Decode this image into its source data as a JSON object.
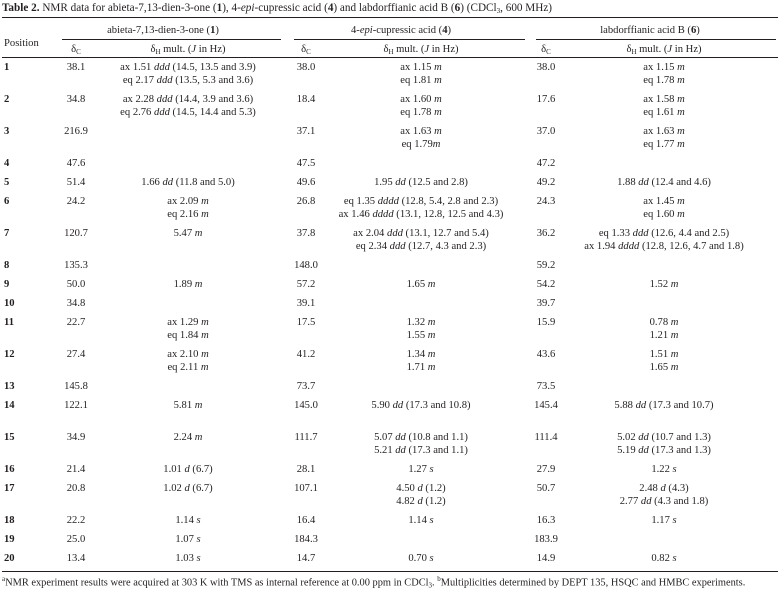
{
  "table": {
    "label": "Table 2.",
    "caption_parts": [
      "NMR data for abieta-7,13-dien-3-one (",
      "1",
      "), 4-",
      "epi",
      "-cupressic acid (",
      "4",
      ") and labdorffianic acid B (",
      "6",
      ") (CDCl",
      "3",
      ", 600 MHz)"
    ],
    "position_header": "Position",
    "compounds": [
      {
        "name_parts": [
          "abieta-7,13-dien-3-one (",
          "1",
          ")"
        ]
      },
      {
        "name_parts": [
          "4-",
          "epi",
          "-cupressic acid (",
          "4",
          ")"
        ]
      },
      {
        "name_parts": [
          "labdorffianic acid B (",
          "6",
          ")"
        ]
      }
    ],
    "subheaders": {
      "dc_sym": "δ",
      "dc_sub": "C",
      "dh_sym": "δ",
      "dh_sub": "H",
      "dh_rest": " mult. (",
      "dh_j": "J",
      "dh_end": " in Hz)"
    },
    "rows": [
      {
        "pos": "1",
        "c1": "38.1",
        "h1": [
          [
            "ax 1.51 ",
            "ddd",
            " (14.5, 13.5 and 3.9)"
          ],
          [
            "eq 2.17 ",
            "ddd",
            " (13.5, 5.3 and 3.6)"
          ]
        ],
        "c4": "38.0",
        "h4": [
          [
            "ax 1.15 ",
            "m",
            ""
          ],
          [
            "eq 1.81 ",
            "m",
            ""
          ]
        ],
        "c6": "38.0",
        "h6": [
          [
            "ax 1.15 ",
            "m",
            ""
          ],
          [
            "eq 1.78 ",
            "m",
            ""
          ]
        ]
      },
      {
        "pos": "2",
        "c1": "34.8",
        "h1": [
          [
            "ax 2.28 ",
            "ddd",
            " (14.4, 3.9 and 3.6)"
          ],
          [
            "eq 2.76 ",
            "ddd",
            " (14.5, 14.4 and 5.3)"
          ]
        ],
        "c4": "18.4",
        "h4": [
          [
            "ax 1.60 ",
            "m",
            ""
          ],
          [
            "eq 1.78 ",
            "m",
            ""
          ]
        ],
        "c6": "17.6",
        "h6": [
          [
            "ax 1.58 ",
            "m",
            ""
          ],
          [
            "eq 1.61 ",
            "m",
            ""
          ]
        ]
      },
      {
        "pos": "3",
        "c1": "216.9",
        "h1": [],
        "c4": "37.1",
        "h4": [
          [
            "ax 1.63 ",
            "m",
            ""
          ],
          [
            "eq 1.79",
            "m",
            ""
          ]
        ],
        "c6": "37.0",
        "h6": [
          [
            "ax 1.63 ",
            "m",
            ""
          ],
          [
            "eq 1.77 ",
            "m",
            ""
          ]
        ]
      },
      {
        "pos": "4",
        "c1": "47.6",
        "h1": [],
        "c4": "47.5",
        "h4": [],
        "c6": "47.2",
        "h6": []
      },
      {
        "pos": "5",
        "c1": "51.4",
        "h1": [
          [
            "1.66 ",
            "dd",
            " (11.8 and 5.0)"
          ]
        ],
        "c4": "49.6",
        "h4": [
          [
            "1.95 ",
            "dd",
            " (12.5 and 2.8)"
          ]
        ],
        "c6": "49.2",
        "h6": [
          [
            "1.88 ",
            "dd",
            " (12.4 and 4.6)"
          ]
        ]
      },
      {
        "pos": "6",
        "c1": "24.2",
        "h1": [
          [
            "ax 2.09 ",
            "m",
            ""
          ],
          [
            "eq 2.16 ",
            "m",
            ""
          ]
        ],
        "c4": "26.8",
        "h4": [
          [
            "eq 1.35 ",
            "dddd",
            " (12.8, 5.4, 2.8 and 2.3)"
          ],
          [
            "ax 1.46 ",
            "dddd",
            " (13.1, 12.8, 12.5 and 4.3)"
          ]
        ],
        "c6": "24.3",
        "h6": [
          [
            "ax 1.45 ",
            "m",
            ""
          ],
          [
            "eq 1.60 ",
            "m",
            ""
          ]
        ]
      },
      {
        "pos": "7",
        "c1": "120.7",
        "h1": [
          [
            "5.47 ",
            "m",
            ""
          ]
        ],
        "c4": "37.8",
        "h4": [
          [
            "ax 2.04 ",
            "ddd",
            " (13.1, 12.7 and 5.4)"
          ],
          [
            "eq 2.34 ",
            "ddd",
            " (12.7, 4.3 and 2.3)"
          ]
        ],
        "c6": "36.2",
        "h6": [
          [
            "eq 1.33 ",
            "ddd",
            " (12.6, 4.4 and 2.5)"
          ],
          [
            "ax 1.94 ",
            "dddd",
            " (12.8, 12.6, 4.7 and 1.8)"
          ]
        ]
      },
      {
        "pos": "8",
        "c1": "135.3",
        "h1": [],
        "c4": "148.0",
        "h4": [],
        "c6": "59.2",
        "h6": []
      },
      {
        "pos": "9",
        "c1": "50.0",
        "h1": [
          [
            "1.89 ",
            "m",
            ""
          ]
        ],
        "c4": "57.2",
        "h4": [
          [
            "1.65 ",
            "m",
            ""
          ]
        ],
        "c6": "54.2",
        "h6": [
          [
            "1.52 ",
            "m",
            ""
          ]
        ]
      },
      {
        "pos": "10",
        "c1": "34.8",
        "h1": [],
        "c4": "39.1",
        "h4": [],
        "c6": "39.7",
        "h6": []
      },
      {
        "pos": "11",
        "c1": "22.7",
        "h1": [
          [
            "ax 1.29 ",
            "m",
            ""
          ],
          [
            "eq 1.84 ",
            "m",
            ""
          ]
        ],
        "c4": "17.5",
        "h4": [
          [
            "1.32 ",
            "m",
            ""
          ],
          [
            "1.55 ",
            "m",
            ""
          ]
        ],
        "c6": "15.9",
        "h6": [
          [
            "0.78 ",
            "m",
            ""
          ],
          [
            "1.21 ",
            "m",
            ""
          ]
        ]
      },
      {
        "pos": "12",
        "c1": "27.4",
        "h1": [
          [
            "ax 2.10 ",
            "m",
            ""
          ],
          [
            "eq 2.11 ",
            "m",
            ""
          ]
        ],
        "c4": "41.2",
        "h4": [
          [
            "1.34 ",
            "m",
            ""
          ],
          [
            "1.71 ",
            "m",
            ""
          ]
        ],
        "c6": "43.6",
        "h6": [
          [
            "1.51 ",
            "m",
            ""
          ],
          [
            "1.65 ",
            "m",
            ""
          ]
        ]
      },
      {
        "pos": "13",
        "c1": "145.8",
        "h1": [],
        "c4": "73.7",
        "h4": [],
        "c6": "73.5",
        "h6": []
      },
      {
        "pos": "14",
        "c1": "122.1",
        "h1": [
          [
            "5.81 ",
            "m",
            ""
          ]
        ],
        "c4": "145.0",
        "h4": [
          [
            "5.90 ",
            "dd",
            " (17.3 and 10.8)"
          ]
        ],
        "c6": "145.4",
        "h6": [
          [
            "5.88 ",
            "dd",
            " (17.3 and 10.7)"
          ]
        ]
      },
      {
        "pos": "15",
        "c1": "34.9",
        "h1": [
          [
            "2.24 ",
            "m",
            ""
          ]
        ],
        "c4": "111.7",
        "h4": [
          [
            "5.07 ",
            "dd",
            " (10.8 and 1.1)"
          ],
          [
            "5.21 ",
            "dd",
            " (17.3 and 1.1)"
          ]
        ],
        "c6": "111.4",
        "h6": [
          [
            "5.02 ",
            "dd",
            " (10.7 and 1.3)"
          ],
          [
            "5.19 ",
            "dd",
            " (17.3 and 1.3)"
          ]
        ]
      },
      {
        "pos": "16",
        "c1": "21.4",
        "h1": [
          [
            "1.01 ",
            "d",
            " (6.7)"
          ]
        ],
        "c4": "28.1",
        "h4": [
          [
            "1.27 ",
            "s",
            ""
          ]
        ],
        "c6": "27.9",
        "h6": [
          [
            "1.22 ",
            "s",
            ""
          ]
        ]
      },
      {
        "pos": "17",
        "c1": "20.8",
        "h1": [
          [
            "1.02 ",
            "d",
            " (6.7)"
          ]
        ],
        "c4": "107.1",
        "h4": [
          [
            "4.50 ",
            "d",
            " (1.2)"
          ],
          [
            "4.82 ",
            "d",
            " (1.2)"
          ]
        ],
        "c6": "50.7",
        "h6": [
          [
            "2.48 ",
            "d",
            " (4.3)"
          ],
          [
            "2.77 ",
            "dd",
            " (4.3 and 1.8)"
          ]
        ]
      },
      {
        "pos": "18",
        "c1": "22.2",
        "h1": [
          [
            "1.14 ",
            "s",
            ""
          ]
        ],
        "c4": "16.4",
        "h4": [
          [
            "1.14 ",
            "s",
            ""
          ]
        ],
        "c6": "16.3",
        "h6": [
          [
            "1.17 ",
            "s",
            ""
          ]
        ]
      },
      {
        "pos": "19",
        "c1": "25.0",
        "h1": [
          [
            "1.07 ",
            "s",
            ""
          ]
        ],
        "c4": "184.3",
        "h4": [],
        "c6": "183.9",
        "h6": []
      },
      {
        "pos": "20",
        "c1": "13.4",
        "h1": [
          [
            "1.03 ",
            "s",
            ""
          ]
        ],
        "c4": "14.7",
        "h4": [
          [
            "0.70 ",
            "s",
            ""
          ]
        ],
        "c6": "14.9",
        "h6": [
          [
            "0.82 ",
            "s",
            ""
          ]
        ]
      }
    ],
    "footnote": {
      "a_mark": "a",
      "a_text": "NMR experiment results were acquired at 303 K with TMS as internal reference at 0.00 ppm in CDCl",
      "a_sub": "3",
      "a_end": ". ",
      "b_mark": "b",
      "b_text": "Multiplicities determined by DEPT 135, HSQC and HMBC experiments."
    }
  }
}
